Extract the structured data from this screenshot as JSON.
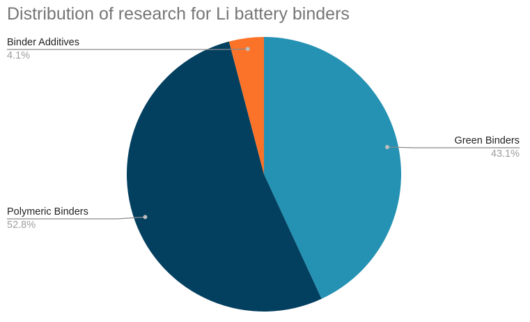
{
  "chart_data": {
    "type": "pie",
    "title": "Distribution of research for Li battery binders",
    "slices": [
      {
        "label": "Green Binders",
        "value": 43.1,
        "value_label": "43.1%",
        "color": "#2592b3"
      },
      {
        "label": "Polymeric Binders",
        "value": 52.8,
        "value_label": "52.8%",
        "color": "#034060"
      },
      {
        "label": "Binder Additives",
        "value": 4.1,
        "value_label": "4.1%",
        "color": "#fb7329"
      }
    ],
    "start_angle_deg": 0,
    "direction": "clockwise",
    "legend": "none",
    "labels": "outside-with-leader-lines"
  }
}
